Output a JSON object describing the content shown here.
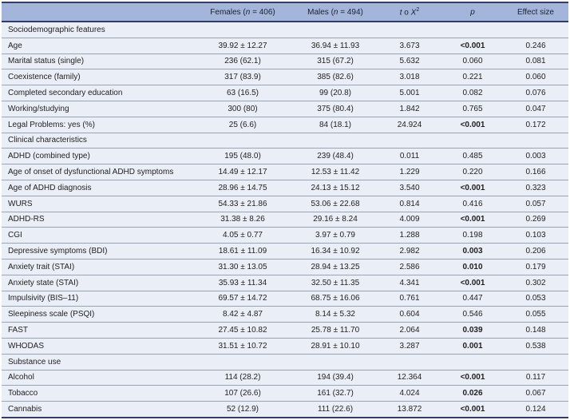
{
  "colors": {
    "header_bg": "#a3b5da",
    "row_bg": "#eaeef6",
    "divider": "#9ba4b5",
    "navy": "#323c66",
    "header_text": "#1b2033",
    "text": "#1f1f1f"
  },
  "table": {
    "header": {
      "label_column": "",
      "females": {
        "pre": "Females (",
        "n": "n",
        "post": " = 406)"
      },
      "males": {
        "pre": "Males (",
        "n": "n",
        "post": " = 494)"
      },
      "stat": {
        "t": "t",
        "conj": " o ",
        "x": "X",
        "exp": "2"
      },
      "p": "p",
      "effect": "Effect size"
    },
    "rows": [
      {
        "type": "section",
        "label": "Sociodemographic features"
      },
      {
        "type": "data",
        "label": "Age",
        "females": "39.92 ± 12.27",
        "males": "36.94 ± 11.93",
        "stat": "3.673",
        "p": "<0.001",
        "p_bold": true,
        "effect": "0.246"
      },
      {
        "type": "data",
        "label": "Marital status (single)",
        "females": "236 (62.1)",
        "males": "315 (67.2)",
        "stat": "5.632",
        "p": "0.060",
        "p_bold": false,
        "effect": "0.081"
      },
      {
        "type": "data",
        "label": "Coexistence (family)",
        "females": "317 (83.9)",
        "males": "385 (82.6)",
        "stat": "3.018",
        "p": "0.221",
        "p_bold": false,
        "effect": "0.060"
      },
      {
        "type": "data",
        "label": "Completed secondary education",
        "females": "63 (16.5)",
        "males": "99 (20.8)",
        "stat": "5.001",
        "p": "0.082",
        "p_bold": false,
        "effect": "0.076"
      },
      {
        "type": "data",
        "label": "Working/studying",
        "females": "300 (80)",
        "males": "375 (80.4)",
        "stat": "1.842",
        "p": "0.765",
        "p_bold": false,
        "effect": "0.047"
      },
      {
        "type": "data",
        "label": "Legal Problems: yes (%)",
        "females": "25 (6.6)",
        "males": "84 (18.1)",
        "stat": "24.924",
        "p": "<0.001",
        "p_bold": true,
        "effect": "0.172"
      },
      {
        "type": "section",
        "label": "Clinical characteristics"
      },
      {
        "type": "data",
        "label": "ADHD (combined type)",
        "females": "195 (48.0)",
        "males": "239 (48.4)",
        "stat": "0.011",
        "p": "0.485",
        "p_bold": false,
        "effect": "0.003"
      },
      {
        "type": "data",
        "label": "Age of onset of dysfunctional ADHD symptoms",
        "females": "14.49 ± 12.17",
        "males": "12.53 ± 11.42",
        "stat": "1.229",
        "p": "0.220",
        "p_bold": false,
        "effect": "0.166"
      },
      {
        "type": "data",
        "label": "Age of ADHD diagnosis",
        "females": "28.96 ± 14.75",
        "males": "24.13 ± 15.12",
        "stat": "3.540",
        "p": "<0.001",
        "p_bold": true,
        "effect": "0.323"
      },
      {
        "type": "data",
        "label": "WURS",
        "females": "54.33 ± 21.86",
        "males": "53.06 ± 22.68",
        "stat": "0.814",
        "p": "0.416",
        "p_bold": false,
        "effect": "0.057"
      },
      {
        "type": "data",
        "label": "ADHD-RS",
        "females": "31.38 ± 8.26",
        "males": "29.16 ± 8.24",
        "stat": "4.009",
        "p": "<0.001",
        "p_bold": true,
        "effect": "0.269"
      },
      {
        "type": "data",
        "label": "CGI",
        "females": "4.05 ± 0.77",
        "males": "3.97 ± 0.79",
        "stat": "1.288",
        "p": "0.198",
        "p_bold": false,
        "effect": "0.103"
      },
      {
        "type": "data",
        "label": "Depressive symptoms (BDI)",
        "females": "18.61 ± 11.09",
        "males": "16.34 ± 10.92",
        "stat": "2.982",
        "p": "0.003",
        "p_bold": true,
        "effect": "0.206"
      },
      {
        "type": "data",
        "label": "Anxiety trait (STAI)",
        "females": "31.30 ± 13.05",
        "males": "28.94 ± 13.25",
        "stat": "2.586",
        "p": "0.010",
        "p_bold": true,
        "effect": "0.179"
      },
      {
        "type": "data",
        "label": "Anxiety state (STAI)",
        "females": "35.93 ± 11.34",
        "males": "32.50 ± 11.35",
        "stat": "4.341",
        "p": "<0.001",
        "p_bold": true,
        "effect": "0.302"
      },
      {
        "type": "data",
        "label": "Impulsivity (BIS–11)",
        "females": "69.57 ± 14.72",
        "males": "68.75 ± 16.06",
        "stat": "0.761",
        "p": "0.447",
        "p_bold": false,
        "effect": "0.053"
      },
      {
        "type": "data",
        "label": "Sleepiness scale (PSQI)",
        "females": "8.42 ± 4.87",
        "males": "8.14 ± 5.32",
        "stat": "0.604",
        "p": "0.546",
        "p_bold": false,
        "effect": "0.055"
      },
      {
        "type": "data",
        "label": "FAST",
        "females": "27.45 ± 10.82",
        "males": "25.78 ± 11.70",
        "stat": "2.064",
        "p": "0.039",
        "p_bold": true,
        "effect": "0.148"
      },
      {
        "type": "data",
        "label": "WHODAS",
        "females": "31.51 ± 10.72",
        "males": "28.91 ± 10.10",
        "stat": "3.287",
        "p": "0.001",
        "p_bold": true,
        "effect": "0.538"
      },
      {
        "type": "section",
        "label": "Substance use"
      },
      {
        "type": "data",
        "label": "Alcohol",
        "females": "114 (28.2)",
        "males": "194 (39.4)",
        "stat": "12.364",
        "p": "<0.001",
        "p_bold": true,
        "effect": "0.117"
      },
      {
        "type": "data",
        "label": "Tobacco",
        "females": "107 (26.6)",
        "males": "161 (32.7)",
        "stat": "4.024",
        "p": "0.026",
        "p_bold": true,
        "effect": "0.067"
      },
      {
        "type": "data",
        "label": "Cannabis",
        "females": "52 (12.9)",
        "males": "111 (22.6)",
        "stat": "13.872",
        "p": "<0.001",
        "p_bold": true,
        "effect": "0.124"
      }
    ]
  }
}
